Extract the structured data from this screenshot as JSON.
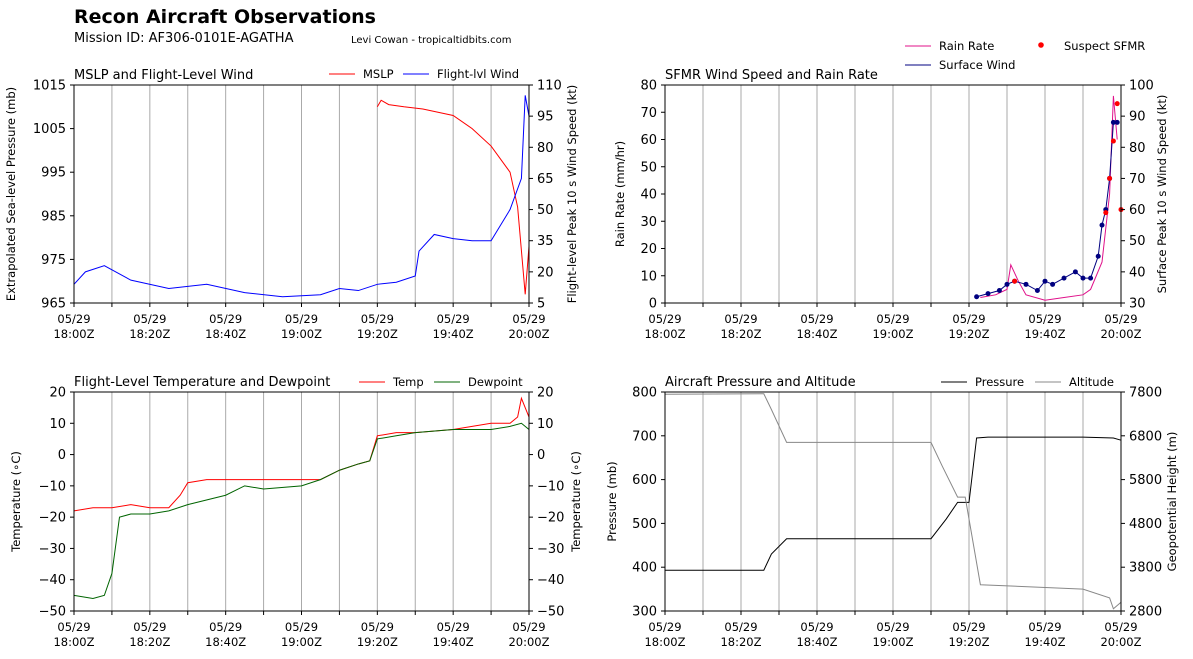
{
  "header": {
    "title": "Recon Aircraft Observations",
    "mission": "Mission ID: AF306-0101E-AGATHA",
    "credit": "Levi Cowan - tropicaltidbits.com"
  },
  "colors": {
    "mslp": "#ff0000",
    "flight_wind": "#0000ff",
    "rain": "#e0108a",
    "surface_wind": "#000080",
    "suspect": "#ff0000",
    "temp": "#ff0000",
    "dewpoint": "#006400",
    "pressure": "#000000",
    "altitude": "#888888",
    "grid": "#aaaaaa"
  },
  "chart_data": [
    {
      "type": "line",
      "title": "MSLP and Flight-Level Wind",
      "x_ticks": [
        "05/29\n18:00Z",
        "05/29\n18:20Z",
        "05/29\n18:40Z",
        "05/29\n19:00Z",
        "05/29\n19:20Z",
        "05/29\n19:40Z",
        "05/29\n20:00Z"
      ],
      "grid": "vertical",
      "legend": "top-right",
      "ylabel": "Extrapolated Sea-level Pressure (mb)",
      "ylim": [
        965,
        1015
      ],
      "yticks": [
        965,
        975,
        985,
        995,
        1005,
        1015
      ],
      "y2label": "Flight-level Peak 10 s Wind Speed (kt)",
      "y2lim": [
        5,
        110
      ],
      "y2ticks": [
        5,
        20,
        35,
        50,
        65,
        80,
        95,
        110
      ],
      "series": [
        {
          "name": "MSLP",
          "axis": "y",
          "x": [
            "19:20",
            "19:21",
            "19:23",
            "19:27",
            "19:32",
            "19:40",
            "19:45",
            "19:50",
            "19:55",
            "19:57",
            "19:59",
            "20:00"
          ],
          "values": [
            1010,
            1011.5,
            1010.5,
            1010,
            1009.5,
            1008,
            1005,
            1001,
            995,
            987,
            967,
            978
          ]
        },
        {
          "name": "Flight-lvl Wind",
          "axis": "y2",
          "x": [
            "18:00",
            "18:03",
            "18:08",
            "18:15",
            "18:25",
            "18:35",
            "18:45",
            "18:55",
            "19:05",
            "19:10",
            "19:15",
            "19:20",
            "19:25",
            "19:30",
            "19:31",
            "19:35",
            "19:40",
            "19:45",
            "19:50",
            "19:55",
            "19:58",
            "19:59",
            "20:00"
          ],
          "values": [
            14,
            20,
            23,
            16,
            12,
            14,
            10,
            8,
            9,
            12,
            11,
            14,
            15,
            18,
            30,
            38,
            36,
            35,
            35,
            50,
            65,
            105,
            95
          ]
        }
      ]
    },
    {
      "type": "line",
      "title": "SFMR Wind Speed and Rain Rate",
      "x_ticks": [
        "05/29\n18:00Z",
        "05/29\n18:20Z",
        "05/29\n18:40Z",
        "05/29\n19:00Z",
        "05/29\n19:20Z",
        "05/29\n19:40Z",
        "05/29\n20:00Z"
      ],
      "grid": "vertical",
      "legend": "top-right",
      "ylabel": "Rain Rate (mm/hr)",
      "ylim": [
        0,
        80
      ],
      "yticks": [
        0,
        10,
        20,
        30,
        40,
        50,
        60,
        70,
        80
      ],
      "y2label": "Surface Peak 10 s Wind Speed (kt)",
      "y2lim": [
        30,
        100
      ],
      "y2ticks": [
        30,
        40,
        50,
        60,
        70,
        80,
        90,
        100
      ],
      "series": [
        {
          "name": "Rain Rate",
          "axis": "y",
          "x": [
            "19:23",
            "19:27",
            "19:30",
            "19:31",
            "19:33",
            "19:35",
            "19:40",
            "19:45",
            "19:50",
            "19:52",
            "19:55",
            "19:57",
            "19:58",
            "19:59"
          ],
          "values": [
            2,
            3,
            5,
            14,
            8,
            3,
            1,
            2,
            3,
            5,
            15,
            40,
            76,
            60
          ]
        },
        {
          "name": "Surface Wind",
          "axis": "y2",
          "x": [
            "19:22",
            "19:25",
            "19:28",
            "19:30",
            "19:32",
            "19:35",
            "19:38",
            "19:40",
            "19:42",
            "19:45",
            "19:48",
            "19:50",
            "19:52",
            "19:54",
            "19:55",
            "19:56",
            "19:57",
            "19:58",
            "19:59"
          ],
          "values": [
            32,
            33,
            34,
            36,
            37,
            36,
            34,
            37,
            36,
            38,
            40,
            38,
            38,
            45,
            55,
            60,
            70,
            88,
            88
          ]
        },
        {
          "name": "Suspect SFMR",
          "axis": "y2",
          "x": [
            "19:32",
            "19:56",
            "19:57",
            "19:58",
            "19:59",
            "20:00"
          ],
          "values": [
            37,
            59,
            70,
            82,
            94,
            60
          ]
        }
      ]
    },
    {
      "type": "line",
      "title": "Flight-Level Temperature and Dewpoint",
      "x_ticks": [
        "05/29\n18:00Z",
        "05/29\n18:20Z",
        "05/29\n18:40Z",
        "05/29\n19:00Z",
        "05/29\n19:20Z",
        "05/29\n19:40Z",
        "05/29\n20:00Z"
      ],
      "grid": "vertical",
      "legend": "top-right",
      "ylabel": "Temperature (∘C)",
      "ylim": [
        -50,
        20
      ],
      "yticks": [
        -50,
        -40,
        -30,
        -20,
        -10,
        0,
        10,
        20
      ],
      "y2label": "Temperature (∘C)",
      "y2lim": [
        -50,
        20
      ],
      "y2ticks": [
        -50,
        -40,
        -30,
        -20,
        -10,
        0,
        10,
        20
      ],
      "series": [
        {
          "name": "Temp",
          "axis": "y",
          "x": [
            "18:00",
            "18:05",
            "18:10",
            "18:15",
            "18:20",
            "18:25",
            "18:28",
            "18:30",
            "18:35",
            "18:45",
            "18:55",
            "19:05",
            "19:10",
            "19:15",
            "19:18",
            "19:20",
            "19:25",
            "19:30",
            "19:40",
            "19:50",
            "19:55",
            "19:57",
            "19:58",
            "20:00"
          ],
          "values": [
            -18,
            -17,
            -17,
            -16,
            -17,
            -17,
            -13,
            -9,
            -8,
            -8,
            -8,
            -8,
            -5,
            -3,
            -2,
            6,
            7,
            7,
            8,
            10,
            10,
            12,
            18,
            12
          ]
        },
        {
          "name": "Dewpoint",
          "axis": "y",
          "x": [
            "18:00",
            "18:05",
            "18:08",
            "18:10",
            "18:12",
            "18:15",
            "18:20",
            "18:25",
            "18:30",
            "18:40",
            "18:45",
            "18:50",
            "19:00",
            "19:05",
            "19:10",
            "19:15",
            "19:18",
            "19:20",
            "19:25",
            "19:30",
            "19:40",
            "19:50",
            "19:55",
            "19:58",
            "20:00"
          ],
          "values": [
            -45,
            -46,
            -45,
            -38,
            -20,
            -19,
            -19,
            -18,
            -16,
            -13,
            -10,
            -11,
            -10,
            -8,
            -5,
            -3,
            -2,
            5,
            6,
            7,
            8,
            8,
            9,
            10,
            8
          ]
        }
      ]
    },
    {
      "type": "line",
      "title": "Aircraft Pressure and Altitude",
      "x_ticks": [
        "05/29\n18:00Z",
        "05/29\n18:20Z",
        "05/29\n18:40Z",
        "05/29\n19:00Z",
        "05/29\n19:20Z",
        "05/29\n19:40Z",
        "05/29\n20:00Z"
      ],
      "grid": "vertical",
      "legend": "top-right",
      "ylabel": "Pressure (mb)",
      "ylim": [
        300,
        800
      ],
      "yticks": [
        300,
        400,
        500,
        600,
        700,
        800
      ],
      "y2label": "Geopotential Height (m)",
      "y2lim": [
        2800,
        7800
      ],
      "y2ticks": [
        2800,
        3800,
        4800,
        5800,
        6800,
        7800
      ],
      "series": [
        {
          "name": "Pressure",
          "axis": "y",
          "x": [
            "18:00",
            "18:26",
            "18:28",
            "18:32",
            "19:10",
            "19:14",
            "19:17",
            "19:20",
            "19:22",
            "19:25",
            "19:50",
            "19:58",
            "20:00"
          ],
          "values": [
            393,
            393,
            430,
            465,
            465,
            510,
            548,
            548,
            695,
            697,
            697,
            695,
            690
          ]
        },
        {
          "name": "Altitude",
          "axis": "y2",
          "x": [
            "18:00",
            "18:26",
            "18:28",
            "18:32",
            "19:10",
            "19:13",
            "19:17",
            "19:19",
            "19:20",
            "19:23",
            "19:50",
            "19:57",
            "19:58",
            "20:00"
          ],
          "values": [
            7750,
            7760,
            7400,
            6650,
            6650,
            6100,
            5400,
            5400,
            4900,
            3400,
            3300,
            3100,
            2850,
            3000
          ]
        }
      ]
    }
  ]
}
